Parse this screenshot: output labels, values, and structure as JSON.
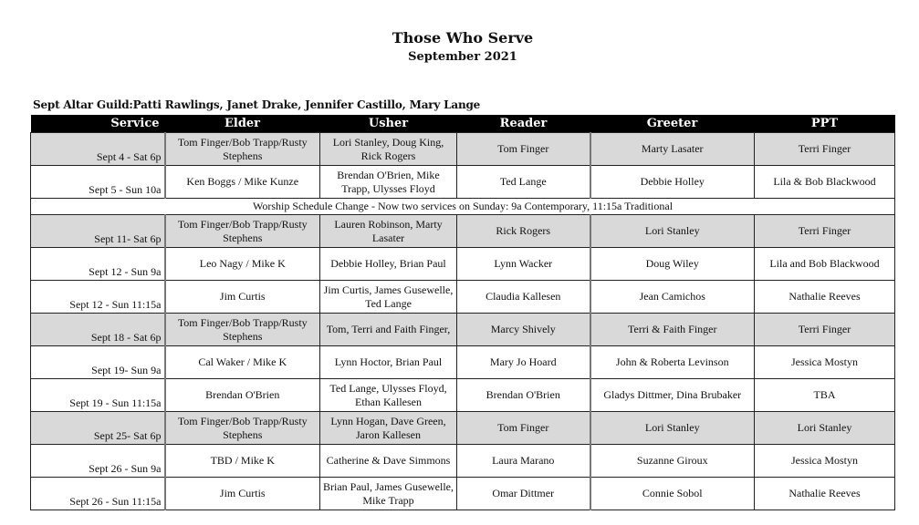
{
  "title": "Those Who Serve",
  "subtitle": "September 2021",
  "altar_guild": "Sept Altar Guild:Patti Rawlings, Janet Drake, Jennifer Castillo, Mary Lange",
  "shade_color": "#d9d9d9",
  "headers": [
    "Service",
    "Elder",
    "Usher",
    "Reader",
    "Greeter",
    "PPT"
  ],
  "rows": [
    {
      "shade": true,
      "cells": [
        "Sept 4 - Sat 6p",
        "Tom Finger/Bob Trapp/Rusty Stephens",
        "Lori Stanley, Doug King, Rick Rogers",
        "Tom Finger",
        "Marty Lasater",
        "Terri Finger"
      ]
    },
    {
      "shade": false,
      "cells": [
        "Sept 5 - Sun 10a",
        "Ken Boggs / Mike Kunze",
        "Brendan O'Brien, Mike Trapp, Ulysses Floyd",
        "Ted Lange",
        "Debbie Holley",
        "Lila & Bob Blackwood"
      ]
    },
    {
      "note": "Worship Schedule Change - Now two services on Sunday:  9a Contemporary, 11:15a Traditional"
    },
    {
      "shade": true,
      "cells": [
        "Sept 11- Sat 6p",
        "Tom Finger/Bob Trapp/Rusty Stephens",
        "Lauren Robinson, Marty Lasater",
        "Rick Rogers",
        "Lori Stanley",
        "Terri Finger"
      ]
    },
    {
      "shade": false,
      "cells": [
        "Sept 12 - Sun 9a",
        "Leo Nagy / Mike  K",
        "Debbie Holley, Brian Paul",
        "Lynn Wacker",
        "Doug Wiley",
        "Lila and Bob Blackwood"
      ]
    },
    {
      "shade": false,
      "cells": [
        "Sept 12 - Sun 11:15a",
        "Jim Curtis",
        "Jim Curtis, James Gusewelle, Ted Lange",
        "Claudia Kallesen",
        "Jean Camichos",
        "Nathalie Reeves"
      ]
    },
    {
      "shade": true,
      "cells": [
        "Sept 18 - Sat 6p",
        "Tom Finger/Bob Trapp/Rusty Stephens",
        "Tom, Terri and Faith Finger,",
        "Marcy Shively",
        "Terri & Faith Finger",
        "Terri Finger"
      ]
    },
    {
      "shade": false,
      "cells": [
        "Sept 19- Sun 9a",
        "Cal Waker / Mike K",
        "Lynn Hoctor, Brian Paul",
        "Mary Jo Hoard",
        "John & Roberta Levinson",
        "Jessica Mostyn"
      ]
    },
    {
      "shade": false,
      "cells": [
        "Sept 19 - Sun 11:15a",
        "Brendan O'Brien",
        "Ted Lange, Ulysses Floyd, Ethan Kallesen",
        "Brendan O'Brien",
        "Gladys Dittmer, Dina Brubaker",
        "TBA"
      ]
    },
    {
      "shade": true,
      "cells": [
        "Sept 25- Sat 6p",
        "Tom Finger/Bob Trapp/Rusty Stephens",
        "Lynn Hogan, Dave Green, Jaron Kallesen",
        "Tom Finger",
        "Lori Stanley",
        "Lori Stanley"
      ]
    },
    {
      "shade": false,
      "cells": [
        "Sept 26 - Sun 9a",
        "TBD / Mike K",
        "Catherine & Dave Simmons",
        "Laura Marano",
        "Suzanne Giroux",
        "Jessica Mostyn"
      ]
    },
    {
      "shade": false,
      "cells": [
        "Sept 26 - Sun 11:15a",
        "Jim Curtis",
        "Brian Paul, James Gusewelle, Mike Trapp",
        "Omar Dittmer",
        "Connie Sobol",
        "Nathalie Reeves"
      ]
    }
  ]
}
